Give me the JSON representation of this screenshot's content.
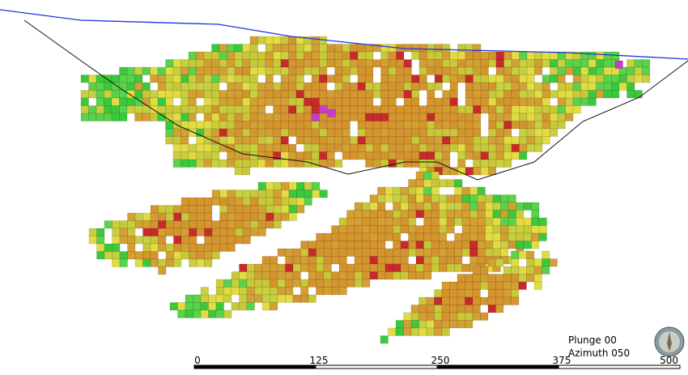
{
  "view": {
    "plunge_label": "Plunge 00",
    "azimuth_label": "Azimuth 050"
  },
  "scale_bar": {
    "ticks": [
      "0",
      "125",
      "250",
      "375",
      "500"
    ]
  }
}
